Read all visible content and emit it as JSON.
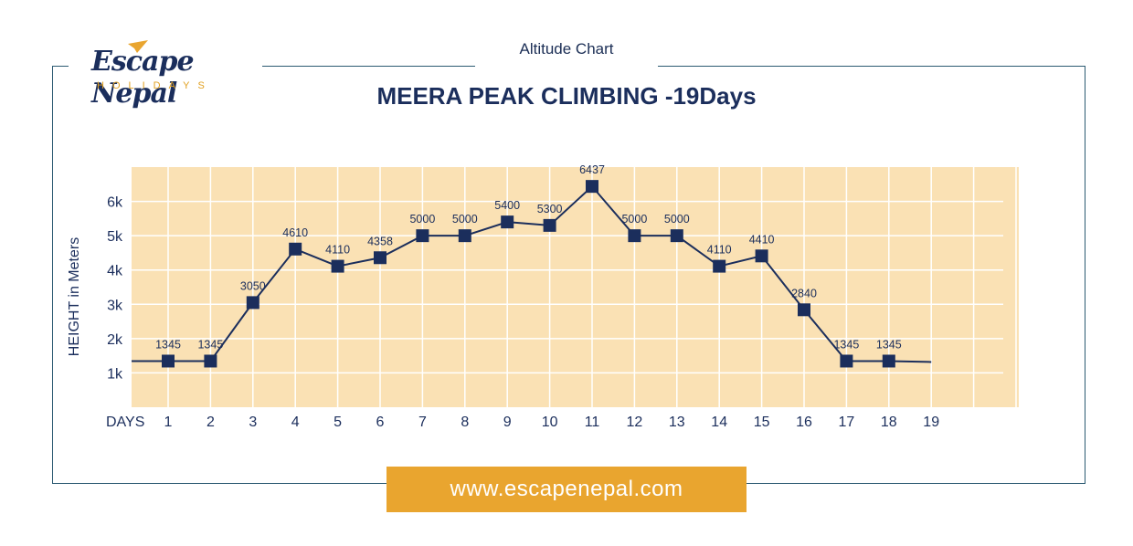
{
  "header": {
    "caption": "Altitude Chart",
    "logo_main": "Escape Nepal",
    "logo_sub": "HOLIDAYS",
    "title": "MEERA PEAK CLIMBING -19Days"
  },
  "footer": {
    "url": "www.escapenepal.com"
  },
  "colors": {
    "plot_bg": "#fae1b4",
    "line": "#1b2e5c",
    "accent": "#e9a52f"
  },
  "chart_data": {
    "type": "line",
    "title": "MEERA PEAK CLIMBING -19Days",
    "xlabel": "DAYS",
    "ylabel": "HEIGHT in Meters",
    "x": [
      1,
      2,
      3,
      4,
      5,
      6,
      7,
      8,
      9,
      10,
      11,
      12,
      13,
      14,
      15,
      16,
      17,
      18
    ],
    "x_ticks": [
      1,
      2,
      3,
      4,
      5,
      6,
      7,
      8,
      9,
      10,
      11,
      12,
      13,
      14,
      15,
      16,
      17,
      18,
      19
    ],
    "y_ticks": [
      {
        "value": 1000,
        "label": "1k"
      },
      {
        "value": 2000,
        "label": "2k"
      },
      {
        "value": 3000,
        "label": "3k"
      },
      {
        "value": 4000,
        "label": "4k"
      },
      {
        "value": 5000,
        "label": "5k"
      },
      {
        "value": 6000,
        "label": "6k"
      }
    ],
    "ylim": [
      0,
      7000
    ],
    "grid": true,
    "series": [
      {
        "values": [
          1345,
          1345,
          3050,
          4610,
          4110,
          4358,
          5000,
          5000,
          5400,
          5300,
          6437,
          5000,
          5000,
          4110,
          4410,
          2840,
          1345,
          1345
        ],
        "labels": [
          "1345",
          "1345",
          "3050",
          "4610",
          "4110",
          "4358",
          "5000",
          "5000",
          "5400",
          "5300",
          "6437",
          "5000",
          "5000",
          "4110",
          "4410",
          "2840",
          "1345",
          "1345"
        ]
      }
    ]
  }
}
